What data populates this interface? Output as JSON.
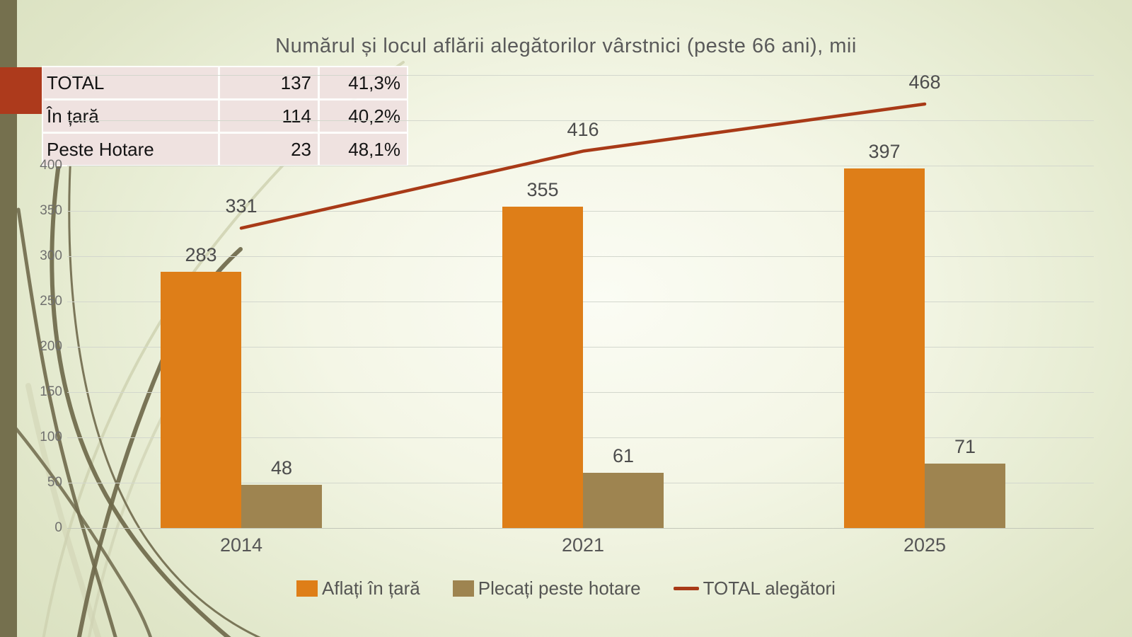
{
  "slide": {
    "title": "Numărul și locul aflării alegătorilor vârstnici (peste 66 ani), mii"
  },
  "table": {
    "rows": [
      [
        "TOTAL",
        "137",
        "41,3%"
      ],
      [
        "În țară",
        "114",
        "40,2%"
      ],
      [
        "Peste Hotare",
        "23",
        "48,1%"
      ]
    ]
  },
  "chart_data": {
    "type": "combo",
    "title": "Numărul și locul aflării alegătorilor vârstnici (peste 66 ani), mii",
    "categories": [
      "2014",
      "2021",
      "2025"
    ],
    "series": [
      {
        "name": "Aflați în țară",
        "type": "bar",
        "color": "#DE7E18",
        "values": [
          283,
          355,
          397
        ]
      },
      {
        "name": "Plecați peste hotare",
        "type": "bar",
        "color": "#9E8450",
        "values": [
          48,
          61,
          71
        ]
      },
      {
        "name": "TOTAL alegători",
        "type": "line",
        "color": "#A83A17",
        "values": [
          331,
          416,
          468
        ]
      }
    ],
    "y_axis": {
      "min": 0,
      "max": 500,
      "tick_step": 50,
      "tick_labels": [
        "0",
        "50",
        "100",
        "150",
        "200",
        "250",
        "300",
        "350",
        "400"
      ]
    },
    "grid": true,
    "legend_position": "bottom",
    "data_labels": true
  },
  "colors": {
    "strip_olive": "#75704E",
    "square_red": "#AD3A1C",
    "decor_dark": "#6F694B",
    "decor_light": "#CFD2B2",
    "table_bg": "#EFE2E0",
    "title_gray": "#5A5A5A"
  }
}
